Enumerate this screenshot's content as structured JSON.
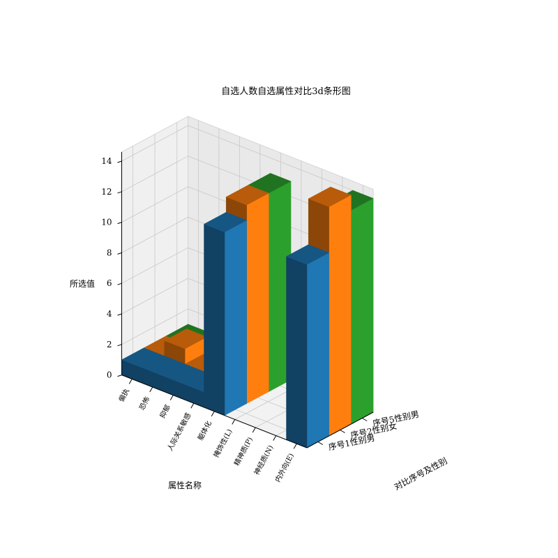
{
  "chart_data": {
    "type": "bar3d",
    "title": "自选人数自选属性对比3d条形图",
    "xlabel": "属性名称",
    "ylabel": "对比序号及性别",
    "zlabel": "所选值",
    "zlim": [
      0,
      14
    ],
    "z_ticks": [
      0,
      2,
      4,
      6,
      8,
      10,
      12,
      14
    ],
    "grid": true,
    "categories": [
      "内外向(E)",
      "神经质(N)",
      "精神质(P)",
      "掩饰性(L)",
      "躯体化",
      "人际关系敏感",
      "抑郁",
      "恐怖",
      "偏执"
    ],
    "series": [
      {
        "name": "序号1性别男",
        "color": "#1f77b4",
        "values": [
          12,
          0,
          0,
          0,
          12,
          1,
          1,
          1,
          1
        ]
      },
      {
        "name": "序号2性别女",
        "color": "#ff7f0e",
        "values": [
          15,
          0,
          0,
          0,
          13,
          1,
          1,
          2,
          1
        ]
      },
      {
        "name": "序号5性别男",
        "color": "#2ca02c",
        "values": [
          14,
          0,
          0,
          0,
          13,
          1,
          1,
          1,
          1
        ]
      }
    ]
  }
}
